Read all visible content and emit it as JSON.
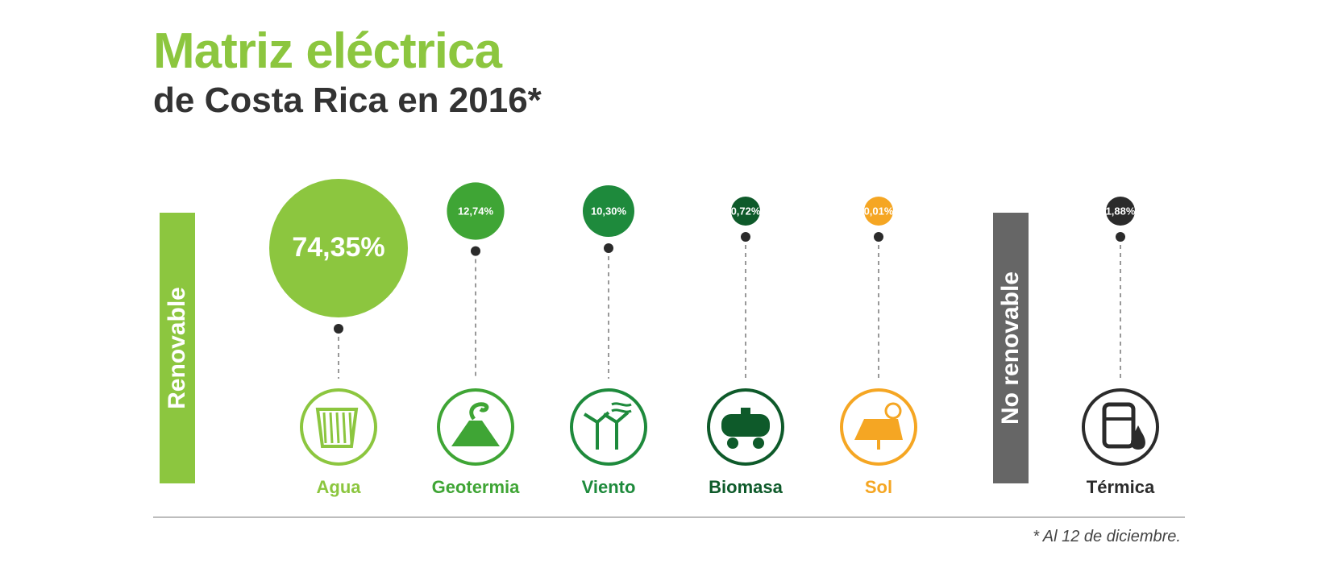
{
  "title": "Matriz eléctrica",
  "subtitle": "de Costa Rica en 2016*",
  "groups": {
    "renewable": "Renovable",
    "nonrenewable": "No renovable"
  },
  "footnote": "* Al 12 de diciembre.",
  "chart_data": {
    "type": "bubble",
    "categories": [
      "Agua",
      "Geotermia",
      "Viento",
      "Biomasa",
      "Sol",
      "Térmica"
    ],
    "values": [
      74.35,
      12.74,
      10.3,
      0.72,
      0.01,
      1.88
    ],
    "value_labels": [
      "74,35%",
      "12,74%",
      "10,30%",
      "0,72%",
      "0,01%",
      "1,88%"
    ],
    "groups": [
      "Renovable",
      "Renovable",
      "Renovable",
      "Renovable",
      "Renovable",
      "No renovable"
    ],
    "units": "%",
    "colors": [
      "#8cc63f",
      "#3fa535",
      "#1e8a3c",
      "#0e5a2a",
      "#f5a623",
      "#2b2b2b"
    ],
    "icons": [
      "dam-icon",
      "volcano-icon",
      "wind-turbine-icon",
      "tank-car-icon",
      "solar-panel-icon",
      "oil-barrel-icon"
    ]
  }
}
